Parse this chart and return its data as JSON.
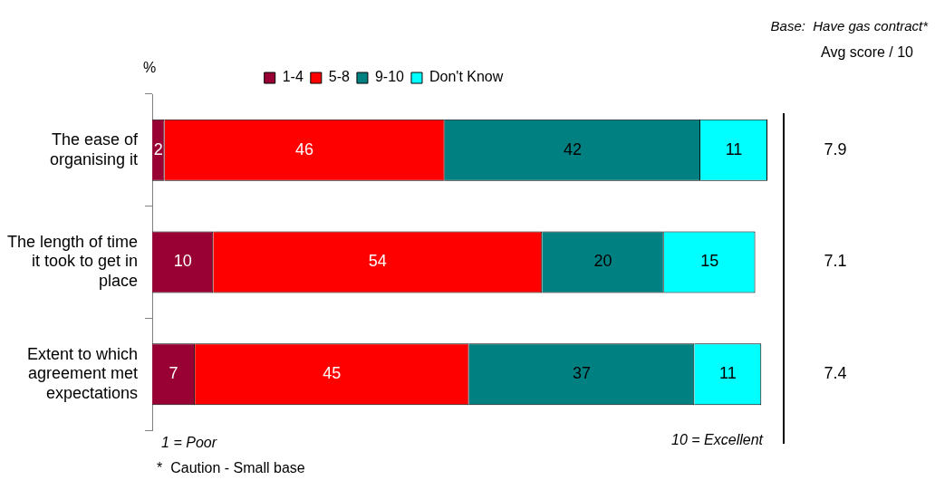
{
  "chart_data": {
    "type": "bar",
    "orientation": "horizontal",
    "stacked": true,
    "subtitle": "Base:  Have gas contract*",
    "categories": [
      "The ease of organising it",
      "The length of time it took to get in place",
      "Extent to which agreement met expectations"
    ],
    "series": [
      {
        "name": "1-4",
        "color": "#990033",
        "values": [
          2,
          10,
          7
        ]
      },
      {
        "name": "5-8",
        "color": "#ff0000",
        "values": [
          46,
          54,
          45
        ]
      },
      {
        "name": "9-10",
        "color": "#008080",
        "values": [
          42,
          20,
          37
        ]
      },
      {
        "name": "Don't Know",
        "color": "#00ffff",
        "values": [
          11,
          15,
          11
        ]
      }
    ],
    "data_labels": true,
    "legend": "top",
    "grid": false,
    "annotations": [
      "%",
      "Avg score / 10",
      "1 = Poor",
      "10 = Excellent",
      "*  Caution - Small base",
      "7.9",
      "7.1",
      "7.4"
    ]
  }
}
